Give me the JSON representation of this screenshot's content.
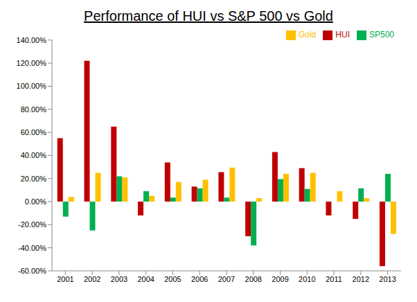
{
  "chart_data": {
    "type": "bar",
    "title": "Performance of HUI vs S&P 500 vs Gold",
    "categories": [
      "2001",
      "2002",
      "2003",
      "2004",
      "2005",
      "2006",
      "2007",
      "2008",
      "2009",
      "2010",
      "2011",
      "2012",
      "2013"
    ],
    "series": [
      {
        "name": "HUI",
        "color": "#c00000",
        "values": [
          55,
          122,
          65,
          -12,
          34,
          13,
          25.5,
          -30,
          43,
          29,
          -12,
          -15,
          -56
        ]
      },
      {
        "name": "SP500",
        "color": "#00b050",
        "values": [
          -13,
          -25,
          22,
          9,
          3.5,
          11.5,
          3.5,
          -38,
          19.5,
          11,
          0,
          11.5,
          24
        ]
      },
      {
        "name": "Gold",
        "color": "#ffc000",
        "values": [
          4,
          25,
          21,
          5,
          17,
          19,
          29.5,
          3,
          24,
          25,
          9,
          3,
          -28
        ]
      }
    ],
    "ylim": [
      -60,
      140
    ],
    "yticks": [
      {
        "value": -60,
        "label": "-60.00%"
      },
      {
        "value": -40,
        "label": "-40.00%"
      },
      {
        "value": -20,
        "label": "-20.00%"
      },
      {
        "value": 0,
        "label": "0.00%"
      },
      {
        "value": 20,
        "label": "20.00%"
      },
      {
        "value": 40,
        "label": "40.00%"
      },
      {
        "value": 60,
        "label": "60.00%"
      },
      {
        "value": 80,
        "label": "80.00%"
      },
      {
        "value": 100,
        "label": "100.00%"
      },
      {
        "value": 120,
        "label": "120.00%"
      },
      {
        "value": 140,
        "label": "140.00%"
      }
    ],
    "grid": false,
    "legend": "top-right"
  }
}
